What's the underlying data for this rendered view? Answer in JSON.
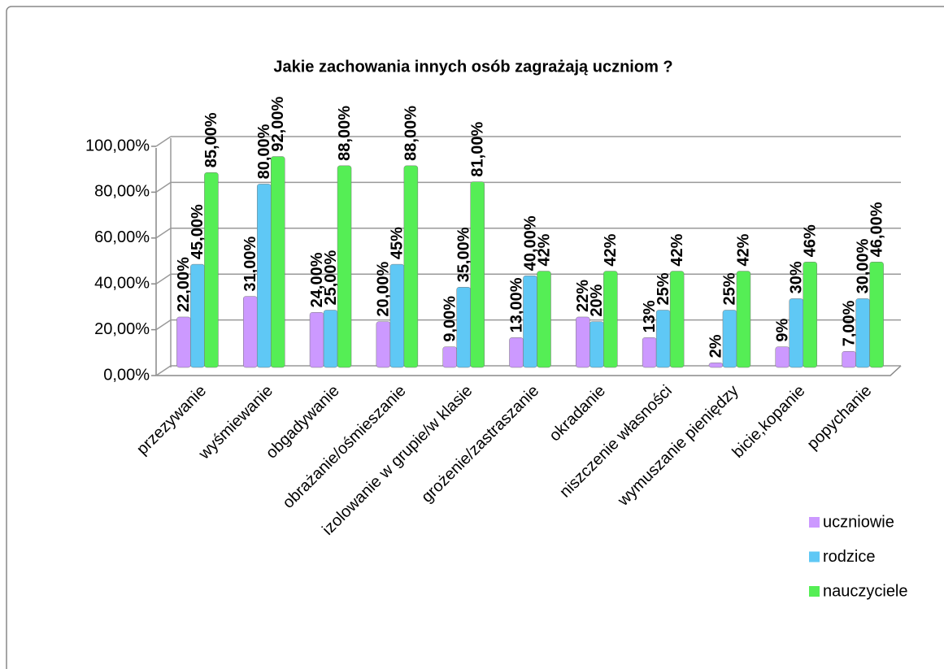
{
  "chart_data": {
    "type": "bar",
    "title": "Jakie zachowania innych osób zagrażają uczniom ?",
    "categories": [
      "przezywanie",
      "wyśmiewanie",
      "obgadywanie",
      "obrażanie/ośmieszanie",
      "izolowanie w grupie/w klasie",
      "grożenie/zastraszanie",
      "okradanie",
      "niszczenie własności",
      "wymuszanie pieniędzy",
      "bicie,kopanie",
      "popychanie"
    ],
    "series": [
      {
        "name": "uczniowie",
        "color": "#cc99ff",
        "values": [
          22,
          31,
          24,
          20,
          9,
          13,
          22,
          13,
          2,
          9,
          7
        ],
        "value_labels": [
          "22,00%",
          "31,00%",
          "24,00%",
          "20,00%",
          "9,00%",
          "13,00%",
          "22%",
          "13%",
          "2%",
          "9%",
          "7,00%"
        ]
      },
      {
        "name": "rodzice",
        "color": "#5fc8f5",
        "values": [
          45,
          80,
          25,
          45,
          35,
          40,
          20,
          25,
          25,
          30,
          30
        ],
        "value_labels": [
          "45,00%",
          "80,00%",
          "25,00%",
          "45%",
          "35,00%",
          "40,00%",
          "20%",
          "25%",
          "25%",
          "30%",
          "30,00%"
        ]
      },
      {
        "name": "nauczyciele",
        "color": "#55ee55",
        "values": [
          85,
          92,
          88,
          88,
          81,
          42,
          42,
          42,
          42,
          46,
          46
        ],
        "value_labels": [
          "85,00%",
          "92,00%",
          "88,00%",
          "88,00%",
          "81,00%",
          "42%",
          "42%",
          "42%",
          "42%",
          "46%",
          "46,00%"
        ]
      }
    ],
    "ylim": [
      0,
      100
    ],
    "yticks": [
      {
        "value": 0,
        "label": "0,00%"
      },
      {
        "value": 20,
        "label": "20,00%"
      },
      {
        "value": 40,
        "label": "40,00%"
      },
      {
        "value": 60,
        "label": "60,00%"
      },
      {
        "value": 80,
        "label": "80,00%"
      },
      {
        "value": 100,
        "label": "100,00%"
      }
    ],
    "grid": true,
    "legend": "right"
  }
}
